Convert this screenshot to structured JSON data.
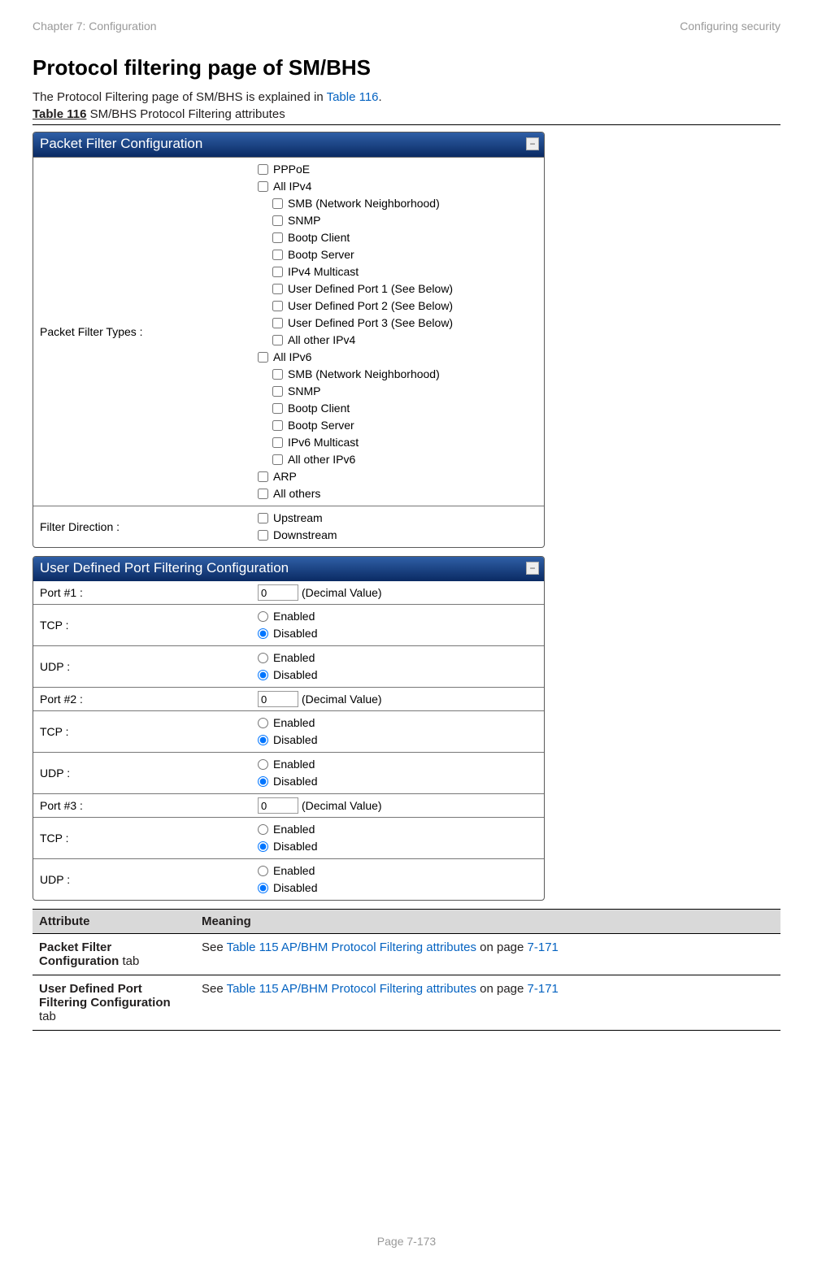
{
  "header": {
    "left": "Chapter 7:  Configuration",
    "right": "Configuring security"
  },
  "title": "Protocol filtering page of SM/BHS",
  "intro_prefix": "The Protocol Filtering page of SM/BHS is explained in ",
  "intro_link": "Table 116",
  "intro_suffix": ".",
  "table_caption_bold": "Table 116",
  "table_caption_rest": " SM/BHS Protocol Filtering attributes",
  "panel1": {
    "title": "Packet Filter Configuration",
    "header_gradient": {
      "from": "#2f5fa6",
      "to": "#0a2a63"
    },
    "row1_label": "Packet Filter Types :",
    "row2_label": "Filter Direction :",
    "filters": [
      {
        "indent": 1,
        "label": "PPPoE"
      },
      {
        "indent": 1,
        "label": "All IPv4"
      },
      {
        "indent": 2,
        "label": "SMB (Network Neighborhood)"
      },
      {
        "indent": 2,
        "label": "SNMP"
      },
      {
        "indent": 2,
        "label": "Bootp Client"
      },
      {
        "indent": 2,
        "label": "Bootp Server"
      },
      {
        "indent": 2,
        "label": "IPv4 Multicast"
      },
      {
        "indent": 2,
        "label": "User Defined Port 1 (See Below)"
      },
      {
        "indent": 2,
        "label": "User Defined Port 2 (See Below)"
      },
      {
        "indent": 2,
        "label": "User Defined Port 3 (See Below)"
      },
      {
        "indent": 2,
        "label": "All other IPv4"
      },
      {
        "indent": 1,
        "label": "All IPv6"
      },
      {
        "indent": 2,
        "label": "SMB (Network Neighborhood)"
      },
      {
        "indent": 2,
        "label": "SNMP"
      },
      {
        "indent": 2,
        "label": "Bootp Client"
      },
      {
        "indent": 2,
        "label": "Bootp Server"
      },
      {
        "indent": 2,
        "label": "IPv6 Multicast"
      },
      {
        "indent": 2,
        "label": "All other IPv6"
      },
      {
        "indent": 1,
        "label": "ARP"
      },
      {
        "indent": 1,
        "label": "All others"
      }
    ],
    "directions": [
      {
        "label": "Upstream"
      },
      {
        "label": "Downstream"
      }
    ]
  },
  "panel2": {
    "title": "User Defined Port Filtering Configuration",
    "header_gradient": {
      "from": "#2f5fa6",
      "to": "#0a2a63"
    },
    "decimal_value_label": "(Decimal Value)",
    "enabled_label": "Enabled",
    "disabled_label": "Disabled",
    "rows": [
      {
        "label": "Port #1 :",
        "type": "port",
        "value": "0"
      },
      {
        "label": "TCP :",
        "type": "radio"
      },
      {
        "label": "UDP :",
        "type": "radio"
      },
      {
        "label": "Port #2 :",
        "type": "port",
        "value": "0"
      },
      {
        "label": "TCP :",
        "type": "radio"
      },
      {
        "label": "UDP :",
        "type": "radio"
      },
      {
        "label": "Port #3 :",
        "type": "port",
        "value": "0"
      },
      {
        "label": "TCP :",
        "type": "radio"
      },
      {
        "label": "UDP :",
        "type": "radio"
      }
    ]
  },
  "attr_table": {
    "col1": "Attribute",
    "col2": "Meaning",
    "rows": [
      {
        "name_bold": "Packet Filter Configuration",
        "name_rest": " tab",
        "meaning_prefix": "See ",
        "meaning_link": "Table 115 AP/BHM Protocol Filtering attributes",
        "meaning_mid": " on page ",
        "meaning_page": "7-171"
      },
      {
        "name_bold": "User Defined Port Filtering Configuration",
        "name_rest": " tab",
        "meaning_prefix": "See ",
        "meaning_link": "Table 115 AP/BHM Protocol Filtering attributes",
        "meaning_mid": " on page ",
        "meaning_page": "7-171"
      }
    ]
  },
  "footer": "Page 7-173"
}
